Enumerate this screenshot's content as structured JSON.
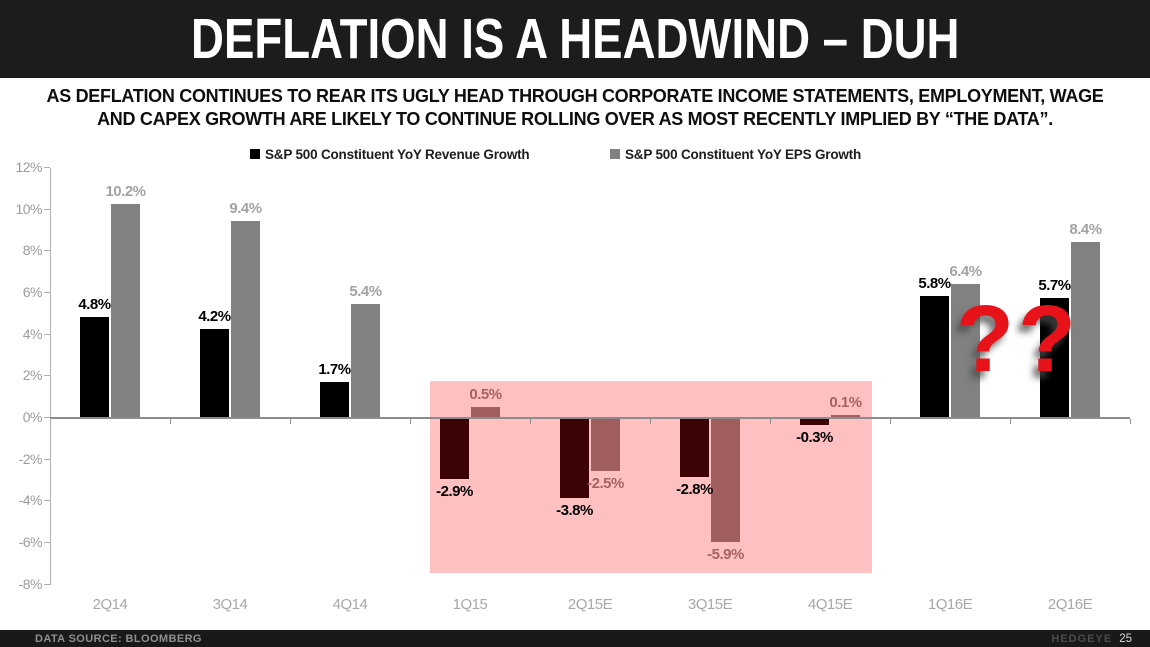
{
  "header": {
    "title": "DEFLATION IS A HEADWIND – DUH"
  },
  "subtitle": {
    "line1": "AS DEFLATION CONTINUES TO REAR ITS UGLY HEAD THROUGH CORPORATE INCOME STATEMENTS, EMPLOYMENT, WAGE",
    "line2": "AND CAPEX GROWTH ARE LIKELY TO CONTINUE ROLLING OVER AS MOST RECENTLY IMPLIED BY “THE DATA”."
  },
  "chart_data": {
    "type": "bar",
    "title": "",
    "categories": [
      "2Q14",
      "3Q14",
      "4Q14",
      "1Q15",
      "2Q15E",
      "3Q15E",
      "4Q15E",
      "1Q16E",
      "2Q16E"
    ],
    "series": [
      {
        "name": "S&P 500 Constituent YoY Revenue Growth",
        "values": [
          4.8,
          4.2,
          1.7,
          -2.9,
          -3.8,
          -2.8,
          -0.3,
          5.8,
          5.7
        ]
      },
      {
        "name": "S&P 500 Constituent YoY EPS Growth",
        "values": [
          10.2,
          9.4,
          5.4,
          0.5,
          -2.5,
          -5.9,
          0.1,
          6.4,
          8.4
        ]
      }
    ],
    "ylim": [
      -8,
      12
    ],
    "ytick_step": 2,
    "ytick_suffix": "%",
    "grid": "zero-line-only",
    "legend_position": "top",
    "highlight_categories": [
      "1Q15",
      "2Q15E",
      "3Q15E",
      "4Q15E"
    ],
    "data_labels": true
  },
  "annotation": {
    "text": "??"
  },
  "colors": {
    "annotation_red": "#e8121a",
    "revenue_bar": "#000000",
    "revenue_bar_highlight": "#3b0304",
    "eps_bar": "#818181",
    "eps_bar_highlight": "#a05e5f",
    "highlight_bg": "#ffc0c1",
    "revenue_label": "#000000",
    "eps_label": "#a3a3a3",
    "eps_label_highlight": "#a66263",
    "axis_line": "#b0b0b0",
    "zero_line": "#8c8c8c"
  },
  "footer": {
    "source": "DATA SOURCE: BLOOMBERG",
    "brand": "HEDGEYE",
    "page": "25"
  }
}
